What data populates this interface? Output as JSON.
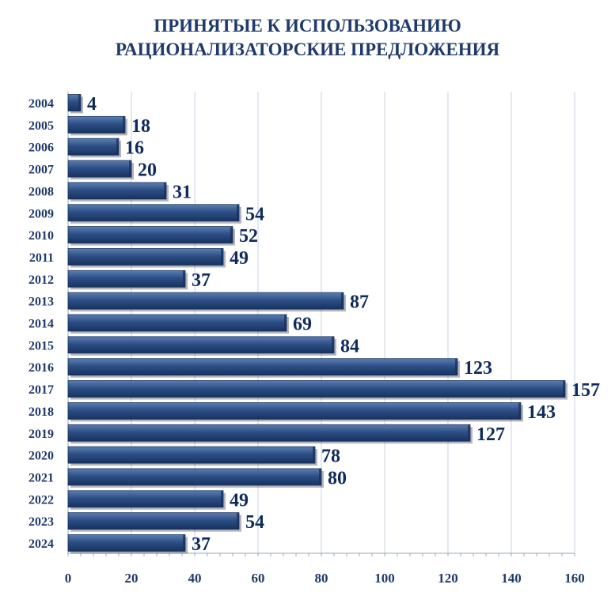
{
  "chart_data": {
    "type": "bar",
    "orientation": "horizontal",
    "title_lines": [
      "ПРИНЯТЫЕ К ИСПОЛЬЗОВАНИЮ",
      "РАЦИОНАЛИЗАТОРСКИЕ ПРЕДЛОЖЕНИЯ"
    ],
    "categories": [
      "2004",
      "2005",
      "2006",
      "2007",
      "2008",
      "2009",
      "2010",
      "2011",
      "2012",
      "2013",
      "2014",
      "2015",
      "2016",
      "2017",
      "2018",
      "2019",
      "2020",
      "2021",
      "2022",
      "2023",
      "2024"
    ],
    "values": [
      4,
      18,
      16,
      20,
      31,
      54,
      52,
      49,
      37,
      87,
      69,
      84,
      123,
      157,
      143,
      127,
      78,
      80,
      49,
      54,
      37
    ],
    "xlim": [
      0,
      160
    ],
    "xticks": [
      0,
      20,
      40,
      60,
      80,
      100,
      120,
      140,
      160
    ],
    "grid": "vertical",
    "legend": "none",
    "bar_color": "#2d4f86",
    "bar_color_dark": "#18325f",
    "bar_color_light": "#5c7fb2",
    "label_color": "#0f2a5c",
    "text_color": "#1f3a6b",
    "grid_color": "#c9d2df"
  }
}
